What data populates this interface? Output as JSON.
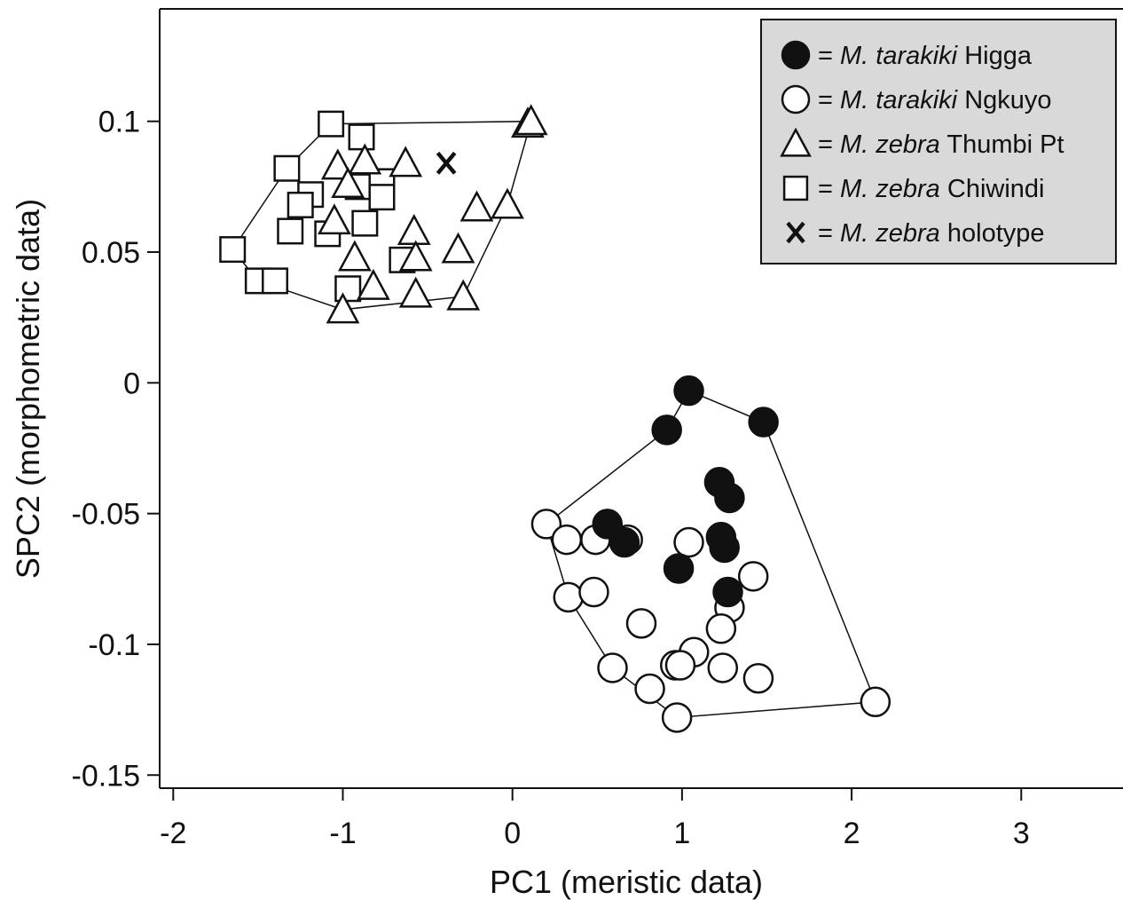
{
  "chart_data": {
    "type": "scatter",
    "title": "",
    "xlabel": "PC1 (meristic data)",
    "ylabel": "SPC2 (morphometric data)",
    "xlim": [
      -2.08,
      3.6
    ],
    "ylim": [
      -0.155,
      0.143
    ],
    "x_ticks": [
      -2,
      -1,
      0,
      1,
      2,
      3
    ],
    "x_tick_labels": [
      "-2",
      "-1",
      "0",
      "1",
      "2",
      "3"
    ],
    "y_ticks": [
      0.1,
      0.05,
      0,
      -0.05,
      -0.1,
      -0.15
    ],
    "y_tick_labels": [
      "0.1",
      "0.05",
      "0",
      "-0.05",
      "-0.1",
      "-0.15"
    ],
    "grid": false,
    "legend_position": "top-right",
    "series": [
      {
        "name": "M. tarakiki Higga",
        "species": "M. tarakiki",
        "locality": "Higga",
        "marker": "filled-circle",
        "hull": true,
        "x": [
          1.04,
          0.91,
          1.48,
          1.22,
          1.28,
          0.56,
          0.66,
          0.98,
          1.23,
          1.25,
          1.27
        ],
        "y": [
          -0.003,
          -0.018,
          -0.015,
          -0.038,
          -0.044,
          -0.054,
          -0.061,
          -0.071,
          -0.059,
          -0.063,
          -0.08
        ]
      },
      {
        "name": "M. tarakiki Ngkuyo",
        "species": "M. tarakiki",
        "locality": "Ngkuyo",
        "marker": "open-circle",
        "hull": true,
        "x": [
          0.2,
          0.32,
          0.49,
          0.68,
          1.04,
          1.42,
          0.33,
          0.48,
          0.76,
          1.28,
          1.23,
          1.07,
          0.96,
          0.99,
          0.59,
          0.81,
          0.97,
          1.24,
          1.45,
          2.14
        ],
        "y": [
          -0.054,
          -0.06,
          -0.06,
          -0.06,
          -0.061,
          -0.074,
          -0.082,
          -0.08,
          -0.092,
          -0.086,
          -0.094,
          -0.103,
          -0.108,
          -0.108,
          -0.109,
          -0.117,
          -0.128,
          -0.109,
          -0.113,
          -0.122
        ]
      },
      {
        "name": "M. zebra Thumbi Pt",
        "species": "M. zebra",
        "locality": "Thumbi Pt",
        "marker": "open-triangle",
        "hull": true,
        "x": [
          0.09,
          0.11,
          -1.03,
          -0.87,
          -0.63,
          -0.21,
          -0.03,
          -1.05,
          -0.58,
          -0.57,
          -0.93,
          -0.32,
          -0.82,
          -1.0,
          -0.57,
          -0.29,
          -0.97
        ],
        "y": [
          0.099,
          0.1,
          0.083,
          0.085,
          0.084,
          0.067,
          0.068,
          0.062,
          0.058,
          0.048,
          0.048,
          0.051,
          0.037,
          0.028,
          0.034,
          0.033,
          0.076
        ]
      },
      {
        "name": "M. zebra Chiwindi",
        "species": "M. zebra",
        "locality": "Chiwindi",
        "marker": "open-square",
        "hull": true,
        "x": [
          -1.07,
          -0.89,
          -1.33,
          -1.19,
          -1.25,
          -0.91,
          -0.77,
          -0.77,
          -0.87,
          -1.31,
          -1.09,
          -0.65,
          -1.65,
          -1.5,
          -1.4,
          -0.97
        ],
        "y": [
          0.099,
          0.094,
          0.082,
          0.072,
          0.068,
          0.075,
          0.077,
          0.071,
          0.061,
          0.058,
          0.057,
          0.047,
          0.051,
          0.039,
          0.039,
          0.036
        ]
      },
      {
        "name": "M. zebra holotype",
        "species": "M. zebra",
        "locality": "holotype",
        "marker": "x-glyph",
        "hull": false,
        "x": [
          -0.39
        ],
        "y": [
          0.084
        ]
      }
    ],
    "hulls": {
      "M. tarakiki": [
        [
          1.04,
          -0.003
        ],
        [
          1.48,
          -0.015
        ],
        [
          2.14,
          -0.122
        ],
        [
          0.97,
          -0.128
        ],
        [
          0.59,
          -0.109
        ],
        [
          0.33,
          -0.082
        ],
        [
          0.2,
          -0.054
        ],
        [
          0.91,
          -0.018
        ]
      ],
      "M. zebra": [
        [
          -1.07,
          0.099
        ],
        [
          0.11,
          0.1
        ],
        [
          -0.03,
          0.068
        ],
        [
          -0.29,
          0.033
        ],
        [
          -1.0,
          0.028
        ],
        [
          -1.5,
          0.039
        ],
        [
          -1.65,
          0.051
        ],
        [
          -1.33,
          0.082
        ]
      ]
    }
  },
  "legend": {
    "items": [
      {
        "symbol": "filled-circle",
        "eq": "=",
        "species": "M. tarakiki",
        "locality": "Higga"
      },
      {
        "symbol": "open-circle",
        "eq": "=",
        "species": "M. tarakiki",
        "locality": "Ngkuyo"
      },
      {
        "symbol": "open-triangle",
        "eq": "=",
        "species": "M. zebra",
        "locality": "Thumbi Pt"
      },
      {
        "symbol": "open-square",
        "eq": "=",
        "species": "M. zebra",
        "locality": "Chiwindi"
      },
      {
        "symbol": "x-glyph",
        "glyph": "X",
        "eq": "=",
        "species": "M. zebra",
        "locality": "holotype"
      }
    ]
  },
  "colors": {
    "ink": "#111111",
    "legend_background": "#d9d9d9",
    "marker_fill_open": "#ffffff"
  }
}
